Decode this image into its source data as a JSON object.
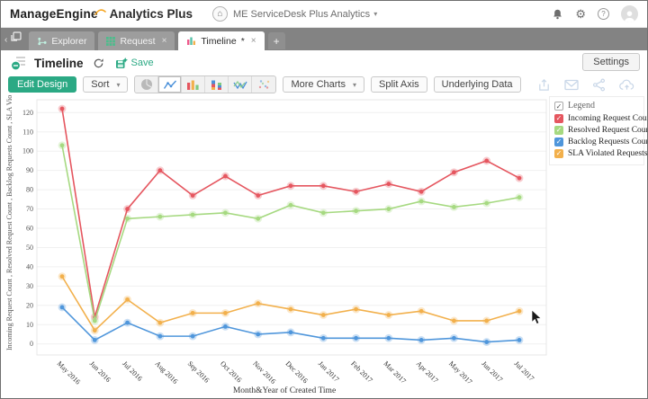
{
  "theme": {
    "accent": "#2ba984"
  },
  "header": {
    "brand": "ManageEngine",
    "product": "Analytics Plus",
    "workspace_label": "ME ServiceDesk Plus Analytics"
  },
  "tab_bar": {
    "tabs": [
      {
        "label": "Explorer"
      },
      {
        "label": "Request"
      },
      {
        "label": "Timeline",
        "modified": "*"
      }
    ],
    "new_tab_label": "+"
  },
  "view_header": {
    "title": "Timeline",
    "save_label": "Save",
    "settings_label": "Settings"
  },
  "toolbar": {
    "edit_design_label": "Edit Design",
    "sort_label": "Sort",
    "more_charts_label": "More Charts",
    "split_axis_label": "Split Axis",
    "underlying_data_label": "Underlying Data"
  },
  "legend": {
    "title": "Legend"
  },
  "chart_data": {
    "type": "line",
    "xlabel": "Month&Year of Created Time",
    "ylabel": "Incoming Request Count , Resolved Request Count , Backlog Requests Count , SLA Violated Requests",
    "ylim": [
      0,
      120
    ],
    "ytick_step": 10,
    "grid": true,
    "legend_position": "top-right",
    "categories": [
      "May 2016",
      "Jun 2016",
      "Jul 2016",
      "Aug 2016",
      "Sep 2016",
      "Oct 2016",
      "Nov 2016",
      "Dec 2016",
      "Jan 2017",
      "Feb 2017",
      "Mar 2017",
      "Apr 2017",
      "May 2017",
      "Jun 2017",
      "Jul 2017"
    ],
    "series": [
      {
        "name": "Incoming Request Count",
        "color": "#e5565f",
        "values": [
          122,
          14,
          70,
          90,
          77,
          87,
          77,
          82,
          82,
          79,
          83,
          79,
          89,
          95,
          86
        ]
      },
      {
        "name": "Resolved Request Count",
        "color": "#a6d981",
        "values": [
          103,
          12,
          65,
          66,
          67,
          68,
          65,
          72,
          68,
          69,
          70,
          74,
          71,
          73,
          76
        ]
      },
      {
        "name": "Backlog Requests Count",
        "color": "#4f96db",
        "values": [
          19,
          2,
          11,
          4,
          4,
          9,
          5,
          6,
          3,
          3,
          3,
          2,
          3,
          1,
          2
        ]
      },
      {
        "name": "SLA Violated Requests",
        "color": "#f2b04c",
        "values": [
          35,
          7,
          23,
          11,
          16,
          16,
          21,
          18,
          15,
          18,
          15,
          17,
          12,
          12,
          17
        ]
      }
    ]
  }
}
